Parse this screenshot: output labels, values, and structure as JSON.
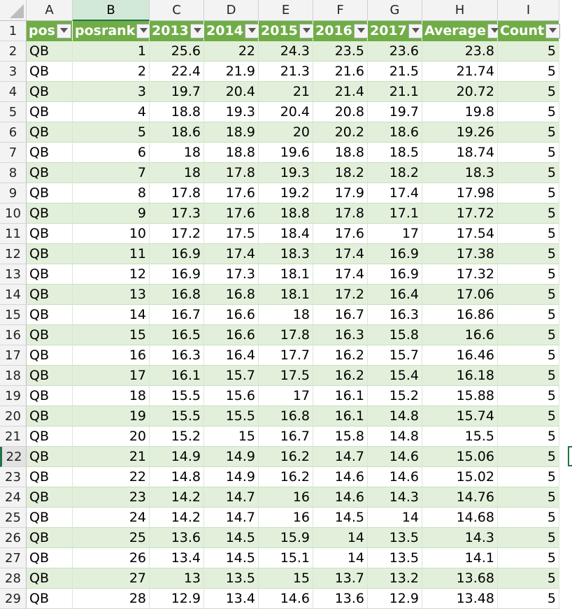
{
  "column_letters": [
    "A",
    "B",
    "C",
    "D",
    "E",
    "F",
    "G",
    "H",
    "I"
  ],
  "selected_column": "B",
  "active_row": 22,
  "headers": [
    "pos",
    "posrank",
    "2013",
    "2014",
    "2015",
    "2016",
    "2017",
    "Average",
    "Count"
  ],
  "rows": [
    {
      "n": "2",
      "cells": [
        "QB",
        "1",
        "25.6",
        "22",
        "24.3",
        "23.5",
        "23.6",
        "23.8",
        "5"
      ]
    },
    {
      "n": "3",
      "cells": [
        "QB",
        "2",
        "22.4",
        "21.9",
        "21.3",
        "21.6",
        "21.5",
        "21.74",
        "5"
      ]
    },
    {
      "n": "4",
      "cells": [
        "QB",
        "3",
        "19.7",
        "20.4",
        "21",
        "21.4",
        "21.1",
        "20.72",
        "5"
      ]
    },
    {
      "n": "5",
      "cells": [
        "QB",
        "4",
        "18.8",
        "19.3",
        "20.4",
        "20.8",
        "19.7",
        "19.8",
        "5"
      ]
    },
    {
      "n": "6",
      "cells": [
        "QB",
        "5",
        "18.6",
        "18.9",
        "20",
        "20.2",
        "18.6",
        "19.26",
        "5"
      ]
    },
    {
      "n": "7",
      "cells": [
        "QB",
        "6",
        "18",
        "18.8",
        "19.6",
        "18.8",
        "18.5",
        "18.74",
        "5"
      ]
    },
    {
      "n": "8",
      "cells": [
        "QB",
        "7",
        "18",
        "17.8",
        "19.3",
        "18.2",
        "18.2",
        "18.3",
        "5"
      ]
    },
    {
      "n": "9",
      "cells": [
        "QB",
        "8",
        "17.8",
        "17.6",
        "19.2",
        "17.9",
        "17.4",
        "17.98",
        "5"
      ]
    },
    {
      "n": "10",
      "cells": [
        "QB",
        "9",
        "17.3",
        "17.6",
        "18.8",
        "17.8",
        "17.1",
        "17.72",
        "5"
      ]
    },
    {
      "n": "11",
      "cells": [
        "QB",
        "10",
        "17.2",
        "17.5",
        "18.4",
        "17.6",
        "17",
        "17.54",
        "5"
      ]
    },
    {
      "n": "12",
      "cells": [
        "QB",
        "11",
        "16.9",
        "17.4",
        "18.3",
        "17.4",
        "16.9",
        "17.38",
        "5"
      ]
    },
    {
      "n": "13",
      "cells": [
        "QB",
        "12",
        "16.9",
        "17.3",
        "18.1",
        "17.4",
        "16.9",
        "17.32",
        "5"
      ]
    },
    {
      "n": "14",
      "cells": [
        "QB",
        "13",
        "16.8",
        "16.8",
        "18.1",
        "17.2",
        "16.4",
        "17.06",
        "5"
      ]
    },
    {
      "n": "15",
      "cells": [
        "QB",
        "14",
        "16.7",
        "16.6",
        "18",
        "16.7",
        "16.3",
        "16.86",
        "5"
      ]
    },
    {
      "n": "16",
      "cells": [
        "QB",
        "15",
        "16.5",
        "16.6",
        "17.8",
        "16.3",
        "15.8",
        "16.6",
        "5"
      ]
    },
    {
      "n": "17",
      "cells": [
        "QB",
        "16",
        "16.3",
        "16.4",
        "17.7",
        "16.2",
        "15.7",
        "16.46",
        "5"
      ]
    },
    {
      "n": "18",
      "cells": [
        "QB",
        "17",
        "16.1",
        "15.7",
        "17.5",
        "16.2",
        "15.4",
        "16.18",
        "5"
      ]
    },
    {
      "n": "19",
      "cells": [
        "QB",
        "18",
        "15.5",
        "15.6",
        "17",
        "16.1",
        "15.2",
        "15.88",
        "5"
      ]
    },
    {
      "n": "20",
      "cells": [
        "QB",
        "19",
        "15.5",
        "15.5",
        "16.8",
        "16.1",
        "14.8",
        "15.74",
        "5"
      ]
    },
    {
      "n": "21",
      "cells": [
        "QB",
        "20",
        "15.2",
        "15",
        "16.7",
        "15.8",
        "14.8",
        "15.5",
        "5"
      ]
    },
    {
      "n": "22",
      "cells": [
        "QB",
        "21",
        "14.9",
        "14.9",
        "16.2",
        "14.7",
        "14.6",
        "15.06",
        "5"
      ]
    },
    {
      "n": "23",
      "cells": [
        "QB",
        "22",
        "14.8",
        "14.9",
        "16.2",
        "14.6",
        "14.6",
        "15.02",
        "5"
      ]
    },
    {
      "n": "24",
      "cells": [
        "QB",
        "23",
        "14.2",
        "14.7",
        "16",
        "14.6",
        "14.3",
        "14.76",
        "5"
      ]
    },
    {
      "n": "25",
      "cells": [
        "QB",
        "24",
        "14.2",
        "14.7",
        "16",
        "14.5",
        "14",
        "14.68",
        "5"
      ]
    },
    {
      "n": "26",
      "cells": [
        "QB",
        "25",
        "13.6",
        "14.5",
        "15.9",
        "14",
        "13.5",
        "14.3",
        "5"
      ]
    },
    {
      "n": "27",
      "cells": [
        "QB",
        "26",
        "13.4",
        "14.5",
        "15.1",
        "14",
        "13.5",
        "14.1",
        "5"
      ]
    },
    {
      "n": "28",
      "cells": [
        "QB",
        "27",
        "13",
        "13.5",
        "15",
        "13.7",
        "13.2",
        "13.68",
        "5"
      ]
    },
    {
      "n": "29",
      "cells": [
        "QB",
        "28",
        "12.9",
        "13.4",
        "14.6",
        "13.6",
        "12.9",
        "13.48",
        "5"
      ]
    }
  ],
  "colors": {
    "header_fill": "#70ad47",
    "band_fill": "#e2efda",
    "selection": "#217346"
  }
}
